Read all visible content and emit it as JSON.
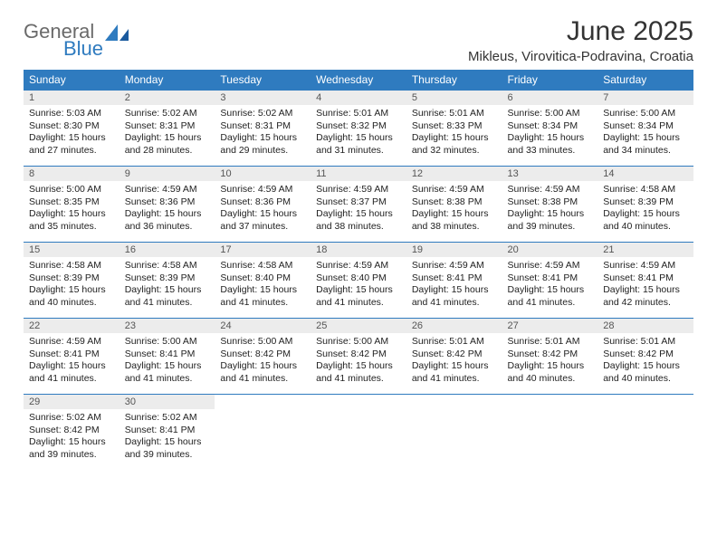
{
  "brand": {
    "general": "General",
    "blue": "Blue"
  },
  "title": "June 2025",
  "location": "Mikleus, Virovitica-Podravina, Croatia",
  "colors": {
    "header_bg": "#2f7bbf",
    "header_fg": "#ffffff",
    "daynum_bg": "#ececec",
    "border": "#2f7bbf",
    "title_color": "#333333",
    "body_text": "#222222",
    "logo_gray": "#6a6a6a",
    "logo_blue": "#2f7bbf"
  },
  "weekdays": [
    "Sunday",
    "Monday",
    "Tuesday",
    "Wednesday",
    "Thursday",
    "Friday",
    "Saturday"
  ],
  "weeks": [
    [
      {
        "n": "1",
        "sr": "5:03 AM",
        "ss": "8:30 PM",
        "dl": "15 hours and 27 minutes."
      },
      {
        "n": "2",
        "sr": "5:02 AM",
        "ss": "8:31 PM",
        "dl": "15 hours and 28 minutes."
      },
      {
        "n": "3",
        "sr": "5:02 AM",
        "ss": "8:31 PM",
        "dl": "15 hours and 29 minutes."
      },
      {
        "n": "4",
        "sr": "5:01 AM",
        "ss": "8:32 PM",
        "dl": "15 hours and 31 minutes."
      },
      {
        "n": "5",
        "sr": "5:01 AM",
        "ss": "8:33 PM",
        "dl": "15 hours and 32 minutes."
      },
      {
        "n": "6",
        "sr": "5:00 AM",
        "ss": "8:34 PM",
        "dl": "15 hours and 33 minutes."
      },
      {
        "n": "7",
        "sr": "5:00 AM",
        "ss": "8:34 PM",
        "dl": "15 hours and 34 minutes."
      }
    ],
    [
      {
        "n": "8",
        "sr": "5:00 AM",
        "ss": "8:35 PM",
        "dl": "15 hours and 35 minutes."
      },
      {
        "n": "9",
        "sr": "4:59 AM",
        "ss": "8:36 PM",
        "dl": "15 hours and 36 minutes."
      },
      {
        "n": "10",
        "sr": "4:59 AM",
        "ss": "8:36 PM",
        "dl": "15 hours and 37 minutes."
      },
      {
        "n": "11",
        "sr": "4:59 AM",
        "ss": "8:37 PM",
        "dl": "15 hours and 38 minutes."
      },
      {
        "n": "12",
        "sr": "4:59 AM",
        "ss": "8:38 PM",
        "dl": "15 hours and 38 minutes."
      },
      {
        "n": "13",
        "sr": "4:59 AM",
        "ss": "8:38 PM",
        "dl": "15 hours and 39 minutes."
      },
      {
        "n": "14",
        "sr": "4:58 AM",
        "ss": "8:39 PM",
        "dl": "15 hours and 40 minutes."
      }
    ],
    [
      {
        "n": "15",
        "sr": "4:58 AM",
        "ss": "8:39 PM",
        "dl": "15 hours and 40 minutes."
      },
      {
        "n": "16",
        "sr": "4:58 AM",
        "ss": "8:39 PM",
        "dl": "15 hours and 41 minutes."
      },
      {
        "n": "17",
        "sr": "4:58 AM",
        "ss": "8:40 PM",
        "dl": "15 hours and 41 minutes."
      },
      {
        "n": "18",
        "sr": "4:59 AM",
        "ss": "8:40 PM",
        "dl": "15 hours and 41 minutes."
      },
      {
        "n": "19",
        "sr": "4:59 AM",
        "ss": "8:41 PM",
        "dl": "15 hours and 41 minutes."
      },
      {
        "n": "20",
        "sr": "4:59 AM",
        "ss": "8:41 PM",
        "dl": "15 hours and 41 minutes."
      },
      {
        "n": "21",
        "sr": "4:59 AM",
        "ss": "8:41 PM",
        "dl": "15 hours and 42 minutes."
      }
    ],
    [
      {
        "n": "22",
        "sr": "4:59 AM",
        "ss": "8:41 PM",
        "dl": "15 hours and 41 minutes."
      },
      {
        "n": "23",
        "sr": "5:00 AM",
        "ss": "8:41 PM",
        "dl": "15 hours and 41 minutes."
      },
      {
        "n": "24",
        "sr": "5:00 AM",
        "ss": "8:42 PM",
        "dl": "15 hours and 41 minutes."
      },
      {
        "n": "25",
        "sr": "5:00 AM",
        "ss": "8:42 PM",
        "dl": "15 hours and 41 minutes."
      },
      {
        "n": "26",
        "sr": "5:01 AM",
        "ss": "8:42 PM",
        "dl": "15 hours and 41 minutes."
      },
      {
        "n": "27",
        "sr": "5:01 AM",
        "ss": "8:42 PM",
        "dl": "15 hours and 40 minutes."
      },
      {
        "n": "28",
        "sr": "5:01 AM",
        "ss": "8:42 PM",
        "dl": "15 hours and 40 minutes."
      }
    ],
    [
      {
        "n": "29",
        "sr": "5:02 AM",
        "ss": "8:42 PM",
        "dl": "15 hours and 39 minutes."
      },
      {
        "n": "30",
        "sr": "5:02 AM",
        "ss": "8:41 PM",
        "dl": "15 hours and 39 minutes."
      },
      null,
      null,
      null,
      null,
      null
    ]
  ],
  "labels": {
    "sunrise": "Sunrise: ",
    "sunset": "Sunset: ",
    "daylight": "Daylight: "
  }
}
